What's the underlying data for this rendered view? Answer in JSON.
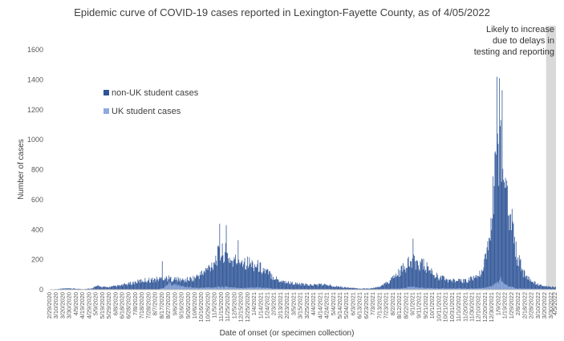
{
  "chart_data": {
    "type": "bar",
    "stacked": true,
    "title": "Epidemic curve of COVID-19 cases reported in Lexington-Fayette County, as of 4/05/2022",
    "xlabel": "Date of onset (or specimen collection)",
    "ylabel": "Number of cases",
    "ylim": [
      0,
      1600
    ],
    "yticks": [
      0,
      200,
      400,
      600,
      800,
      1000,
      1200,
      1400,
      1600
    ],
    "x_start": "2/29/2020",
    "x_end": "4/5/2022",
    "xticks": [
      "2/29/2020",
      "3/10/2020",
      "3/20/2020",
      "3/30/2020",
      "4/9/2020",
      "4/19/2020",
      "4/29/2020",
      "5/9/2020",
      "5/19/2020",
      "5/29/2020",
      "6/8/2020",
      "6/18/2020",
      "6/28/2020",
      "7/8/2020",
      "7/18/2020",
      "7/28/2020",
      "8/7/2020",
      "8/17/2020",
      "8/27/2020",
      "9/6/2020",
      "9/16/2020",
      "9/26/2020",
      "10/6/2020",
      "10/16/2020",
      "10/26/2020",
      "11/5/2020",
      "11/15/2020",
      "11/25/2020",
      "12/5/2020",
      "12/15/2020",
      "12/25/2020",
      "1/4/2021",
      "1/14/2021",
      "1/24/2021",
      "2/3/2021",
      "2/13/2021",
      "2/23/2021",
      "3/5/2021",
      "3/15/2021",
      "3/25/2021",
      "4/4/2021",
      "4/14/2021",
      "4/24/2021",
      "5/4/2021",
      "5/14/2021",
      "5/24/2021",
      "6/3/2021",
      "6/13/2021",
      "6/23/2021",
      "7/3/2021",
      "7/13/2021",
      "7/23/2021",
      "8/2/2021",
      "8/12/2021",
      "8/22/2021",
      "9/1/2021",
      "9/11/2021",
      "9/21/2021",
      "10/1/2021",
      "10/11/2021",
      "10/21/2021",
      "10/31/2021",
      "11/10/2021",
      "11/20/2021",
      "11/30/2021",
      "12/10/2021",
      "12/20/2021",
      "12/30/2021",
      "1/9/2022",
      "1/19/2022",
      "1/29/2022",
      "2/8/2022",
      "2/18/2022",
      "2/28/2022",
      "3/10/2022",
      "3/20/2022",
      "3/30/2022",
      "4/5/2022"
    ],
    "series": [
      {
        "name": "non-UK student cases",
        "color": "#2f5597",
        "key_points": [
          [
            "2/29/2020",
            0
          ],
          [
            "3/10/2020",
            5
          ],
          [
            "3/20/2020",
            10
          ],
          [
            "4/1/2020",
            10
          ],
          [
            "4/20/2020",
            5
          ],
          [
            "5/1/2020",
            10
          ],
          [
            "5/10/2020",
            30
          ],
          [
            "5/25/2020",
            20
          ],
          [
            "6/15/2020",
            35
          ],
          [
            "7/5/2020",
            60
          ],
          [
            "7/20/2020",
            80
          ],
          [
            "8/5/2020",
            85
          ],
          [
            "8/20/2020",
            100
          ],
          [
            "9/5/2020",
            90
          ],
          [
            "9/20/2020",
            80
          ],
          [
            "10/5/2020",
            100
          ],
          [
            "10/20/2020",
            150
          ],
          [
            "11/1/2020",
            220
          ],
          [
            "11/10/2020",
            300
          ],
          [
            "11/20/2020",
            320
          ],
          [
            "12/1/2020",
            240
          ],
          [
            "12/15/2020",
            260
          ],
          [
            "12/25/2020",
            230
          ],
          [
            "1/10/2021",
            200
          ],
          [
            "1/25/2021",
            140
          ],
          [
            "2/10/2021",
            80
          ],
          [
            "2/25/2021",
            60
          ],
          [
            "3/15/2021",
            45
          ],
          [
            "4/1/2021",
            40
          ],
          [
            "4/15/2021",
            45
          ],
          [
            "5/1/2021",
            35
          ],
          [
            "5/20/2021",
            20
          ],
          [
            "6/10/2021",
            10
          ],
          [
            "6/25/2021",
            10
          ],
          [
            "7/10/2021",
            20
          ],
          [
            "7/25/2021",
            60
          ],
          [
            "8/10/2021",
            140
          ],
          [
            "8/25/2021",
            220
          ],
          [
            "9/5/2021",
            240
          ],
          [
            "9/20/2021",
            200
          ],
          [
            "10/5/2021",
            120
          ],
          [
            "10/25/2021",
            80
          ],
          [
            "11/15/2021",
            70
          ],
          [
            "12/1/2021",
            100
          ],
          [
            "12/15/2021",
            140
          ],
          [
            "12/25/2021",
            400
          ],
          [
            "1/2/2022",
            900
          ],
          [
            "1/8/2022",
            1250
          ],
          [
            "1/12/2022",
            1200
          ],
          [
            "1/20/2022",
            900
          ],
          [
            "1/28/2022",
            600
          ],
          [
            "2/5/2022",
            300
          ],
          [
            "2/15/2022",
            150
          ],
          [
            "2/25/2022",
            80
          ],
          [
            "3/10/2022",
            40
          ],
          [
            "3/25/2022",
            25
          ],
          [
            "4/5/2022",
            20
          ]
        ],
        "peaks": [
          [
            "8/17/2020",
            190
          ],
          [
            "11/12/2020",
            440
          ],
          [
            "11/22/2020",
            430
          ],
          [
            "12/10/2020",
            330
          ],
          [
            "9/1/2021",
            340
          ],
          [
            "1/6/2022",
            1420
          ],
          [
            "1/10/2022",
            1410
          ],
          [
            "1/14/2022",
            1330
          ]
        ]
      },
      {
        "name": "UK student cases",
        "color": "#8faadc",
        "key_points": [
          [
            "2/29/2020",
            0
          ],
          [
            "8/10/2020",
            0
          ],
          [
            "8/20/2020",
            20
          ],
          [
            "8/27/2020",
            55
          ],
          [
            "9/5/2020",
            45
          ],
          [
            "9/20/2020",
            25
          ],
          [
            "10/10/2020",
            15
          ],
          [
            "11/1/2020",
            20
          ],
          [
            "11/20/2020",
            25
          ],
          [
            "12/10/2020",
            15
          ],
          [
            "1/10/2021",
            20
          ],
          [
            "2/1/2021",
            10
          ],
          [
            "3/1/2021",
            5
          ],
          [
            "5/1/2021",
            5
          ],
          [
            "6/1/2021",
            0
          ],
          [
            "8/15/2021",
            10
          ],
          [
            "8/28/2021",
            25
          ],
          [
            "9/15/2021",
            15
          ],
          [
            "10/15/2021",
            10
          ],
          [
            "12/1/2021",
            10
          ],
          [
            "12/20/2021",
            15
          ],
          [
            "1/5/2022",
            50
          ],
          [
            "1/12/2022",
            90
          ],
          [
            "1/20/2022",
            40
          ],
          [
            "2/5/2022",
            10
          ],
          [
            "4/5/2022",
            5
          ]
        ]
      }
    ],
    "legend": [
      "non-UK student cases",
      "UK student cases"
    ],
    "legend_position": "upper-left",
    "shaded_region": {
      "start": "3/22/2022",
      "end": "4/5/2022",
      "color": "#d9d9d9",
      "label": "Likely to increase due to delays in testing and reporting"
    }
  }
}
